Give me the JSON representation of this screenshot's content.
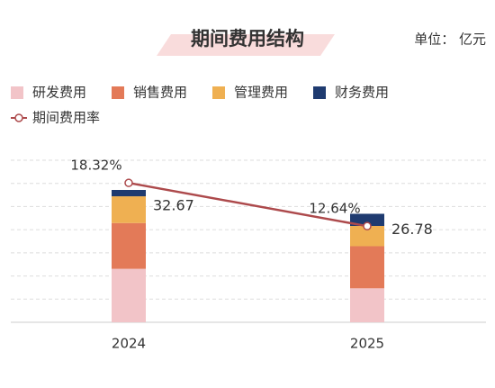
{
  "chart_data": {
    "type": "bar",
    "stacked": true,
    "title": "期间费用结构",
    "unit": "单位： 亿元",
    "categories": [
      "2024",
      "2025"
    ],
    "series": [
      {
        "name": "研发费用",
        "color": "#f2c4c8",
        "values": [
          13.2,
          8.38
        ]
      },
      {
        "name": "销售费用",
        "color": "#e37a58",
        "values": [
          11.3,
          10.4
        ]
      },
      {
        "name": "管理费用",
        "color": "#efb052",
        "values": [
          6.6,
          5.0
        ]
      },
      {
        "name": "财务费用",
        "color": "#1f3b70",
        "values": [
          1.57,
          3.0
        ]
      },
      {
        "name": "期间费用率",
        "type": "line",
        "axis": "y2",
        "color": "#ad4a4c",
        "values": [
          18.32,
          12.64
        ],
        "value_labels": [
          "18.32%",
          "12.64%"
        ]
      }
    ],
    "totals": [
      32.67,
      26.78
    ],
    "ylim": [
      0,
      40
    ],
    "y2lim": [
      0,
      21.3
    ],
    "grid": true
  }
}
